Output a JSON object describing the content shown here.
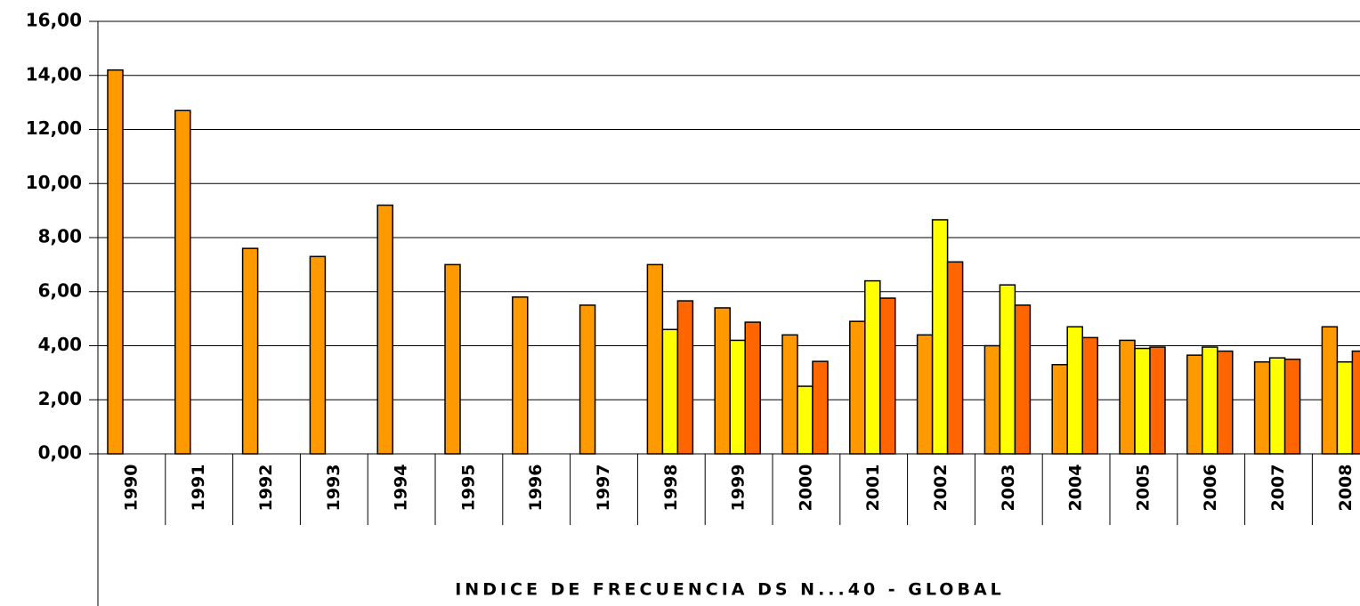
{
  "chart_data": {
    "type": "bar",
    "x_label": "INDICE DE FRECUENCIA DS N...40 - GLOBAL",
    "categories": [
      "1990",
      "1991",
      "1992",
      "1993",
      "1994",
      "1995",
      "1996",
      "1997",
      "1998",
      "1999",
      "2000",
      "2001",
      "2002",
      "2003",
      "2004",
      "2005",
      "2006",
      "2007",
      "2008"
    ],
    "series": [
      {
        "color": "#FF9900",
        "values": [
          14.2,
          12.7,
          7.6,
          7.3,
          9.2,
          7.0,
          5.8,
          5.5,
          7.0,
          5.4,
          4.4,
          4.9,
          4.4,
          4.0,
          3.3,
          4.2,
          3.65,
          3.4,
          4.7
        ]
      },
      {
        "color": "#FFFF00",
        "values": [
          null,
          null,
          null,
          null,
          null,
          null,
          null,
          null,
          4.6,
          4.2,
          2.5,
          6.4,
          8.66,
          6.25,
          4.7,
          3.9,
          3.95,
          3.55,
          3.4
        ]
      },
      {
        "color": "#FF6600",
        "values": [
          null,
          null,
          null,
          null,
          null,
          null,
          null,
          null,
          5.66,
          4.87,
          3.42,
          5.76,
          7.1,
          5.5,
          4.3,
          3.95,
          3.8,
          3.5,
          3.8
        ]
      }
    ],
    "ylim": [
      0,
      16
    ],
    "yticks": [
      {
        "value": 0,
        "label": "0,00"
      },
      {
        "value": 2,
        "label": "2,00"
      },
      {
        "value": 4,
        "label": "4,00"
      },
      {
        "value": 6,
        "label": "6,00"
      },
      {
        "value": 8,
        "label": "8,00"
      },
      {
        "value": 10,
        "label": "10,00"
      },
      {
        "value": 12,
        "label": "12,00"
      },
      {
        "value": 14,
        "label": "14,00"
      },
      {
        "value": 16,
        "label": "16,00"
      }
    ],
    "grid": true
  }
}
